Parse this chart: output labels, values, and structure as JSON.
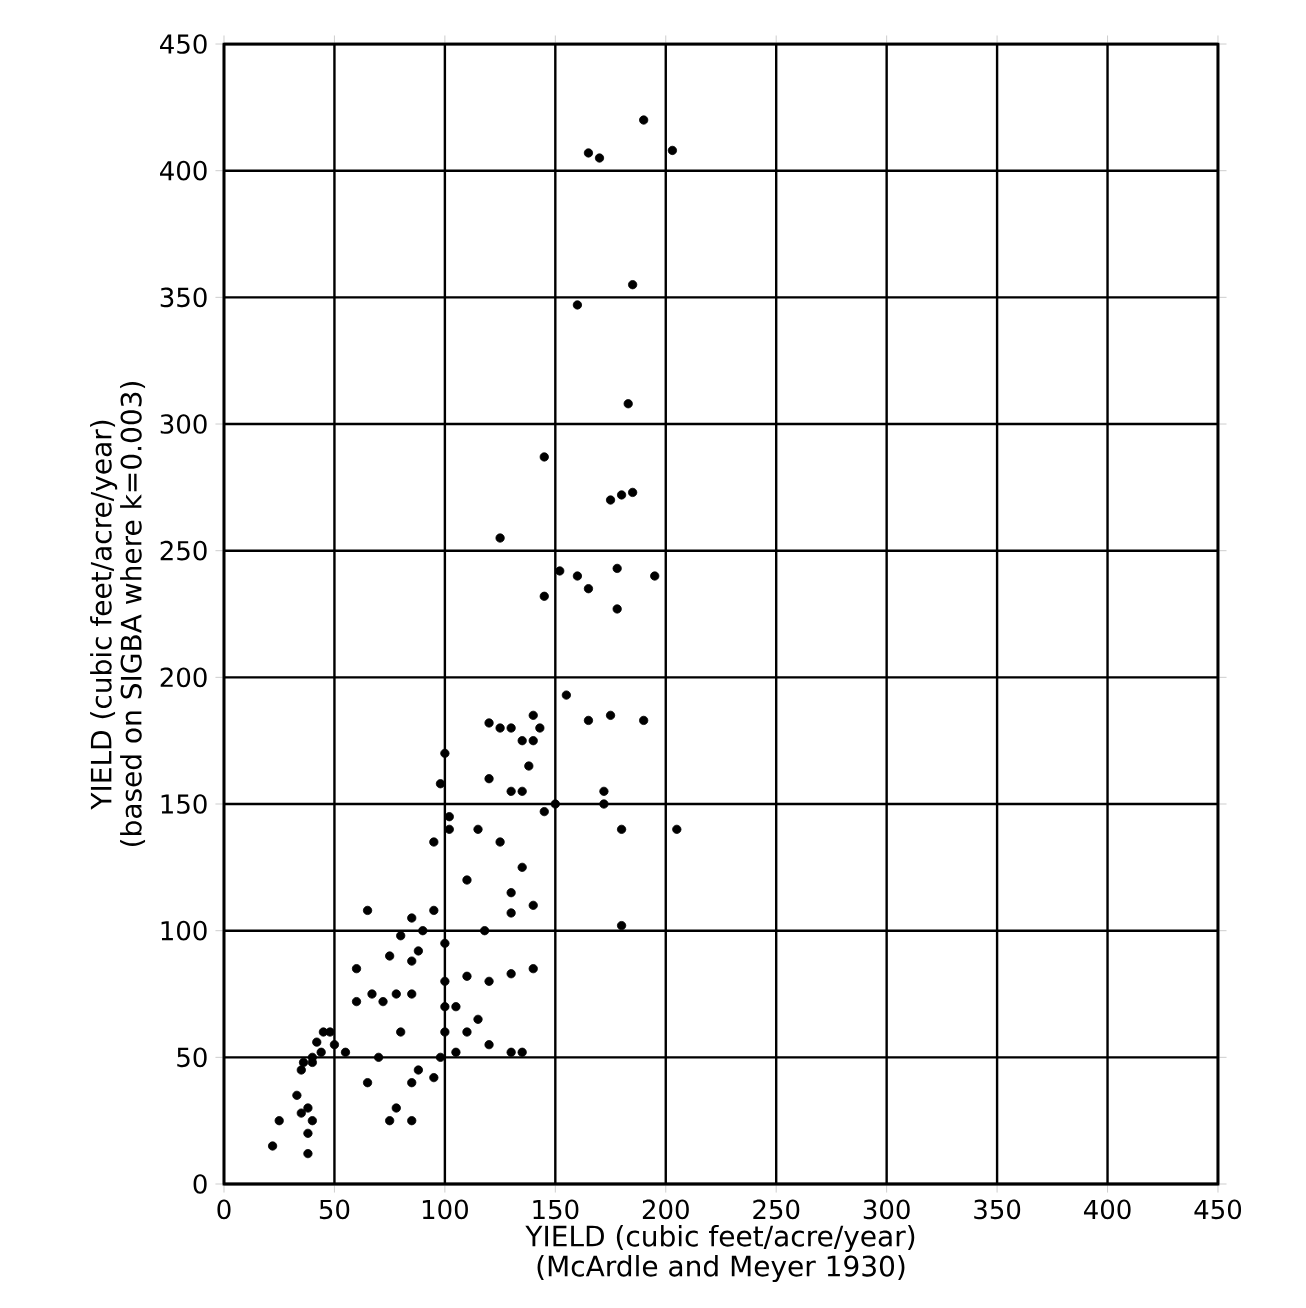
{
  "chart_data": {
    "type": "scatter",
    "xlabel": "YIELD (cubic feet/acre/year)\n(McArdle and Meyer 1930)",
    "ylabel": "YIELD (cubic feet/acre/year)\n(based on SIGBA where k=0.003)",
    "xlim": [
      0,
      450
    ],
    "ylim": [
      0,
      450
    ],
    "xticks": [
      0,
      50,
      100,
      150,
      200,
      250,
      300,
      350,
      400,
      450
    ],
    "yticks": [
      0,
      50,
      100,
      150,
      200,
      250,
      300,
      350,
      400,
      450
    ],
    "grid": true,
    "series": [
      {
        "color": "#000000",
        "x": [
          165,
          170,
          190,
          203,
          185,
          160,
          183,
          180,
          185,
          145,
          175,
          195,
          160,
          152,
          178,
          178,
          145,
          125,
          165,
          155,
          143,
          120,
          130,
          140,
          135,
          140,
          138,
          150,
          145,
          165,
          175,
          190,
          180,
          172,
          172,
          205,
          180,
          135,
          130,
          125,
          100,
          98,
          102,
          102,
          95,
          115,
          120,
          110,
          118,
          130,
          130,
          125,
          135,
          140,
          120,
          130,
          140,
          110,
          110,
          105,
          115,
          120,
          130,
          135,
          100,
          95,
          100,
          100,
          105,
          100,
          98,
          95,
          90,
          85,
          80,
          75,
          65,
          60,
          60,
          67,
          72,
          78,
          85,
          88,
          85,
          80,
          88,
          85,
          78,
          75,
          85,
          65,
          70,
          55,
          50,
          48,
          45,
          42,
          40,
          36,
          35,
          40,
          44,
          38,
          33,
          25,
          22,
          35,
          38,
          38,
          40
        ],
        "values": [
          407,
          405,
          420,
          408,
          355,
          347,
          308,
          272,
          273,
          287,
          270,
          240,
          240,
          242,
          243,
          227,
          232,
          255,
          235,
          193,
          180,
          182,
          180,
          175,
          175,
          185,
          165,
          150,
          147,
          183,
          185,
          183,
          140,
          150,
          155,
          140,
          102,
          155,
          155,
          180,
          170,
          158,
          145,
          140,
          135,
          140,
          160,
          120,
          100,
          107,
          115,
          135,
          125,
          110,
          80,
          83,
          85,
          82,
          60,
          52,
          65,
          55,
          52,
          52,
          95,
          108,
          80,
          70,
          70,
          60,
          50,
          42,
          100,
          105,
          98,
          90,
          108,
          85,
          72,
          75,
          72,
          75,
          88,
          92,
          75,
          60,
          45,
          40,
          30,
          25,
          25,
          40,
          50,
          52,
          55,
          60,
          60,
          56,
          50,
          48,
          45,
          48,
          52,
          30,
          35,
          25,
          15,
          28,
          20,
          12,
          25
        ]
      }
    ]
  }
}
